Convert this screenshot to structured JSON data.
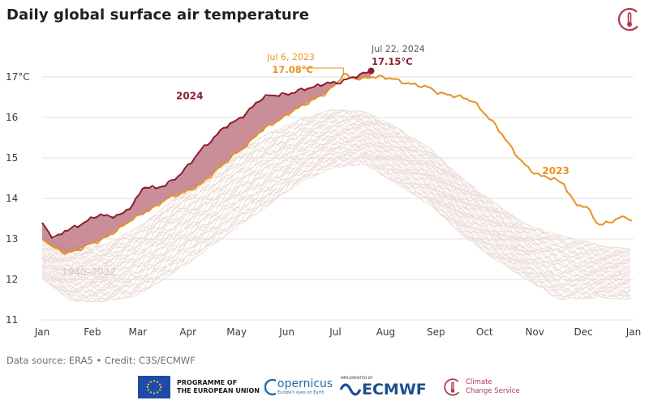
{
  "chart_data": {
    "type": "line",
    "title": "Daily global surface air temperature",
    "ylim": [
      11,
      17.4
    ],
    "yticks": [
      11,
      12,
      13,
      14,
      15,
      16,
      17
    ],
    "ytick_labels": [
      "11",
      "12",
      "13",
      "14",
      "15",
      "16",
      "17°C"
    ],
    "xtick_labels": [
      "Jan",
      "Feb",
      "Mar",
      "Apr",
      "May",
      "Jun",
      "Jul",
      "Aug",
      "Sep",
      "Oct",
      "Nov",
      "Dec",
      "Jan"
    ],
    "grid": "horizontal",
    "x_unit": "day of year",
    "series": [
      {
        "name": "2023",
        "color": "#e8921f",
        "x": [
          1,
          8,
          15,
          22,
          29,
          36,
          43,
          50,
          57,
          64,
          71,
          78,
          85,
          92,
          99,
          106,
          113,
          120,
          127,
          134,
          141,
          148,
          155,
          162,
          169,
          176,
          183,
          187,
          190,
          197,
          204,
          211,
          218,
          225,
          232,
          239,
          246,
          253,
          260,
          267,
          274,
          281,
          288,
          295,
          302,
          309,
          316,
          323,
          330,
          337,
          344,
          351,
          358,
          365
        ],
        "values": [
          13.0,
          12.8,
          12.65,
          12.7,
          12.85,
          12.95,
          13.1,
          13.3,
          13.5,
          13.65,
          13.8,
          14.0,
          14.1,
          14.2,
          14.35,
          14.6,
          14.85,
          15.1,
          15.3,
          15.6,
          15.8,
          15.95,
          16.15,
          16.3,
          16.45,
          16.6,
          16.85,
          17.08,
          17.0,
          16.95,
          17.0,
          17.0,
          16.95,
          16.85,
          16.8,
          16.75,
          16.6,
          16.55,
          16.5,
          16.4,
          16.1,
          15.8,
          15.4,
          15.0,
          14.7,
          14.55,
          14.5,
          14.35,
          13.85,
          13.8,
          13.35,
          13.4,
          13.55,
          13.45
        ]
      },
      {
        "name": "2024",
        "color": "#8b1e2e",
        "x": [
          1,
          8,
          15,
          22,
          29,
          36,
          43,
          50,
          57,
          64,
          71,
          78,
          85,
          92,
          99,
          106,
          113,
          120,
          127,
          134,
          141,
          148,
          155,
          162,
          169,
          176,
          183,
          190,
          197,
          204
        ],
        "values": [
          13.4,
          13.0,
          13.2,
          13.3,
          13.45,
          13.6,
          13.55,
          13.6,
          13.85,
          14.3,
          14.25,
          14.35,
          14.55,
          14.85,
          15.2,
          15.45,
          15.75,
          15.9,
          16.1,
          16.4,
          16.55,
          16.55,
          16.6,
          16.7,
          16.75,
          16.85,
          16.85,
          16.95,
          17.05,
          17.15
        ]
      },
      {
        "name": "1940–2022",
        "color": "#ead9d4",
        "low": [
          12.0,
          11.45,
          11.45,
          11.6,
          12.1,
          12.65,
          13.25,
          13.8,
          14.4,
          14.75,
          14.85,
          14.35,
          13.85,
          13.1,
          12.5,
          12.0,
          11.5,
          11.55,
          11.5
        ],
        "high": [
          13.05,
          12.8,
          12.85,
          13.3,
          13.9,
          14.55,
          15.15,
          15.6,
          15.95,
          16.2,
          16.15,
          15.75,
          15.25,
          14.5,
          13.9,
          13.35,
          13.1,
          12.85,
          12.75
        ],
        "x": [
          1,
          20,
          40,
          60,
          80,
          100,
          120,
          140,
          160,
          180,
          200,
          220,
          240,
          260,
          280,
          300,
          320,
          345,
          365
        ]
      }
    ],
    "annotations": [
      {
        "label": "Jul 6, 2023",
        "value_label": "17.08°C",
        "x": 187,
        "y": 17.08,
        "color": "#e8921f"
      },
      {
        "label": "Jul 22, 2024",
        "value_label": "17.15°C",
        "x": 204,
        "y": 17.15,
        "color": "#8b1e2e"
      }
    ],
    "series_labels": [
      {
        "text": "2024",
        "x": 92,
        "y": 16.45,
        "color": "#8b1e2e"
      },
      {
        "text": "2023",
        "x": 318,
        "y": 14.6,
        "color": "#e8921f"
      },
      {
        "text": "1940–2022",
        "x": 28,
        "y": 12.1,
        "color": "#dcc6c0"
      }
    ]
  },
  "footer": {
    "source": "Data source: ERA5 • Credit: C3S/ECMWF",
    "eu_line1": "PROGRAMME OF",
    "eu_line2": "THE EUROPEAN UNION",
    "copernicus": "opernicus",
    "copernicus_tagline": "Europe's eyes on Earth",
    "ecmwf_small": "IMPLEMENTED BY",
    "ecmwf": "ECMWF",
    "c3s_line1": "Climate",
    "c3s_line2": "Change Service"
  }
}
